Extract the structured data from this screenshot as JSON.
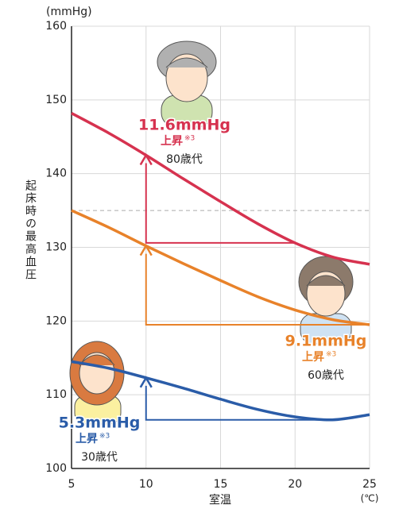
{
  "chart_data": {
    "type": "line",
    "y_unit": "(mmHg)",
    "y_label": "起床時の最高血圧",
    "x_label": "室温",
    "x_unit": "(℃)",
    "x": [
      5,
      7.5,
      10,
      12.5,
      15,
      17.5,
      20,
      22.5,
      25
    ],
    "xlim": [
      5,
      25
    ],
    "xticks": [
      5,
      10,
      15,
      20,
      25
    ],
    "ylim": [
      100,
      160
    ],
    "yticks": [
      100,
      110,
      120,
      130,
      140,
      150,
      160
    ],
    "grid": true,
    "reference_line": 135,
    "series": [
      {
        "name": "80歳代",
        "color": "#d6324f",
        "values": [
          148.2,
          145.5,
          142.5,
          139.3,
          136.2,
          133.2,
          130.6,
          128.7,
          127.7
        ],
        "annotation": {
          "rise": "11.6mmHg",
          "label": "上昇",
          "note": "※3"
        }
      },
      {
        "name": "60歳代",
        "color": "#e8822a",
        "values": [
          135,
          132.7,
          130.2,
          127.8,
          125.5,
          123.3,
          121.5,
          120.2,
          119.5
        ],
        "annotation": {
          "rise": "9.1mmHg",
          "label": "上昇",
          "note": "※3"
        }
      },
      {
        "name": "30歳代",
        "color": "#2a5ca8",
        "values": [
          114.5,
          113.6,
          112.3,
          110.9,
          109.4,
          108,
          107,
          106.6,
          107.3
        ],
        "annotation": {
          "rise": "5.3mmHg",
          "label": "上昇",
          "note": "※3"
        }
      }
    ]
  }
}
